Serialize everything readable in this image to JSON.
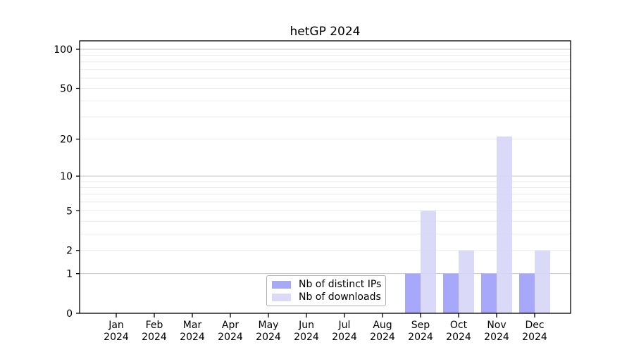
{
  "chart_data": {
    "type": "bar",
    "title": "hetGP 2024",
    "categories": [
      "Jan 2024",
      "Feb 2024",
      "Mar 2024",
      "Apr 2024",
      "May 2024",
      "Jun 2024",
      "Jul 2024",
      "Aug 2024",
      "Sep 2024",
      "Oct 2024",
      "Nov 2024",
      "Dec 2024"
    ],
    "series": [
      {
        "name": "Nb of distinct IPs",
        "color": "#9f9ff9",
        "values": [
          0,
          0,
          0,
          0,
          0,
          0,
          0,
          0,
          1,
          1,
          1,
          1
        ]
      },
      {
        "name": "Nb of downloads",
        "color": "#d6d6f7",
        "values": [
          0,
          0,
          0,
          0,
          0,
          0,
          0,
          0,
          5,
          2,
          21,
          2
        ]
      }
    ],
    "bar_opacity": 0.9,
    "y_axis": {
      "scale": "log1p",
      "tick_values": [
        0,
        1,
        2,
        5,
        10,
        20,
        50,
        100
      ],
      "range": [
        0,
        116
      ]
    },
    "gridlines": {
      "major": [
        1,
        10,
        100
      ],
      "minor": [
        2,
        3,
        4,
        5,
        6,
        7,
        8,
        9,
        20,
        30,
        40,
        50,
        60,
        70,
        80,
        90
      ],
      "major_color": "#c4c4c4",
      "minor_color": "#ebebeb"
    },
    "legend": {
      "position": "inside-bottom-center"
    },
    "colors": {
      "axis": "#000000",
      "text": "#000000",
      "background": "#ffffff"
    }
  }
}
